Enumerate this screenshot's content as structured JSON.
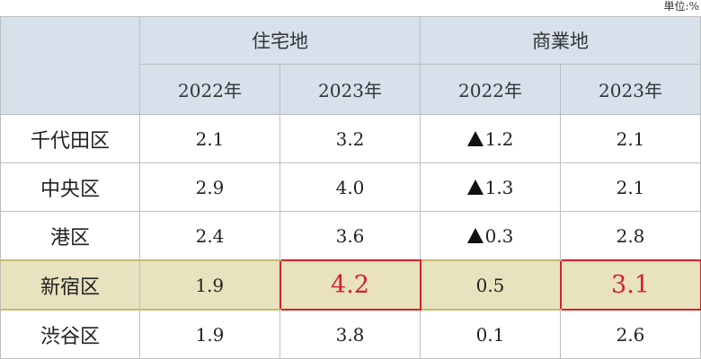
{
  "unit_label": "単位:%",
  "groups": [
    "住宅地",
    "商業地"
  ],
  "years": [
    "2022年",
    "2023年",
    "2022年",
    "2023年"
  ],
  "rows": [
    {
      "ward": "千代田区",
      "res_2022": "2.1",
      "res_2023": "3.2",
      "com_2022": "1.2",
      "com_2022_negative": true,
      "com_2023": "2.1",
      "highlight": false
    },
    {
      "ward": "中央区",
      "res_2022": "2.9",
      "res_2023": "4.0",
      "com_2022": "1.3",
      "com_2022_negative": true,
      "com_2023": "2.1",
      "highlight": false
    },
    {
      "ward": "港区",
      "res_2022": "2.4",
      "res_2023": "3.6",
      "com_2022": "0.3",
      "com_2022_negative": true,
      "com_2023": "2.8",
      "highlight": false
    },
    {
      "ward": "新宿区",
      "res_2022": "1.9",
      "res_2023": "4.2",
      "com_2022": "0.5",
      "com_2022_negative": false,
      "com_2023": "3.1",
      "highlight": true
    },
    {
      "ward": "渋谷区",
      "res_2022": "1.9",
      "res_2023": "3.8",
      "com_2022": "0.1",
      "com_2022_negative": false,
      "com_2023": "2.6",
      "highlight": false
    }
  ],
  "colors": {
    "header_bg": "#d6e1ec",
    "highlight_bg": "#e8e2be",
    "emphasis_red": "#d5202a",
    "border": "#bdbdbd"
  },
  "icons": {
    "negative_marker": "black-up-triangle-icon"
  }
}
